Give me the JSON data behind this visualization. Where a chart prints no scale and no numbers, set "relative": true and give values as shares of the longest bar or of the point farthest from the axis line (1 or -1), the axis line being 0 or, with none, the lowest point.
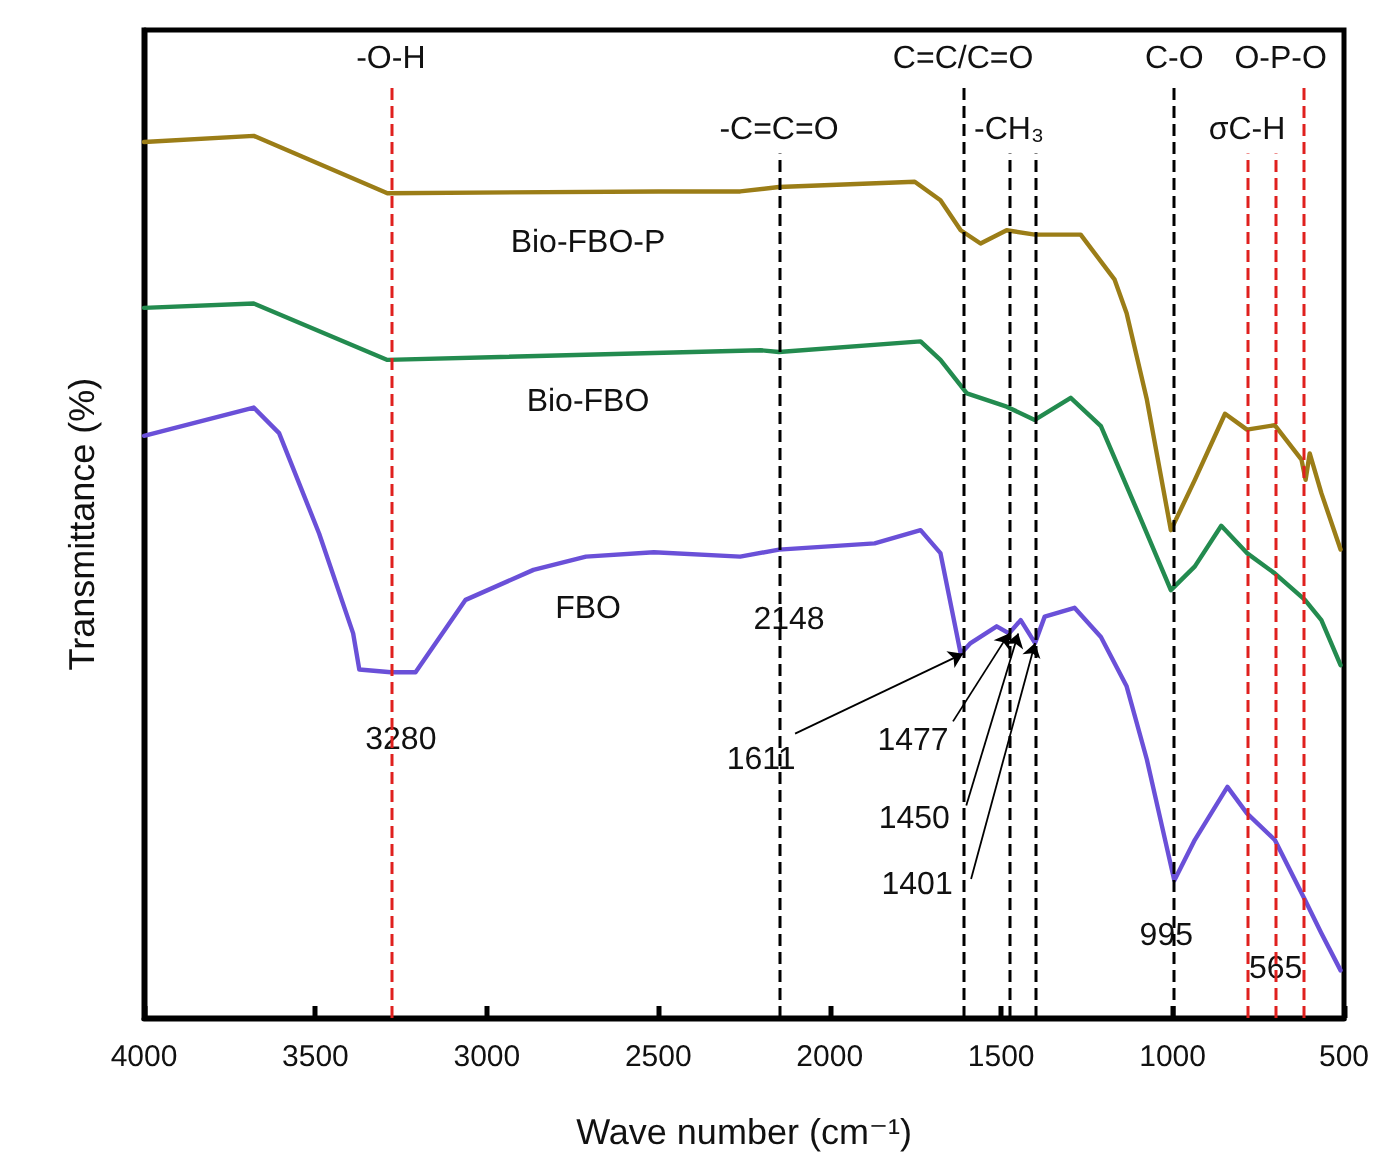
{
  "chart_data": {
    "type": "line",
    "xlabel": "Wave number (cm⁻¹)",
    "ylabel": "Transmittance (%)",
    "relative": true,
    "xlim": [
      4000,
      500
    ],
    "xticks": [
      4000,
      3500,
      3000,
      2500,
      2000,
      1500,
      1000,
      500
    ],
    "grid": false,
    "legend": false,
    "marker": "none",
    "line_style": "solid",
    "series": [
      {
        "name": "Bio-FBO-P",
        "color": "#9b7d17",
        "x": [
          4000,
          3680,
          3290,
          2500,
          2261,
          2148,
          1752,
          1677,
          1618,
          1560,
          1484,
          1402,
          1268,
          1169,
          1134,
          1075,
          1005,
          935,
          847,
          783,
          702,
          624,
          612,
          600,
          566,
          510
        ],
        "values": [
          0.993,
          1,
          0.935,
          0.937,
          0.937,
          0.942,
          0.948,
          0.927,
          0.893,
          0.878,
          0.893,
          0.888,
          0.888,
          0.837,
          0.799,
          0.701,
          0.553,
          0.61,
          0.685,
          0.667,
          0.672,
          0.633,
          0.61,
          0.64,
          0.595,
          0.531
        ]
      },
      {
        "name": "Bio-FBO",
        "color": "#238b4f",
        "x": [
          4000,
          3680,
          3290,
          2202,
          2148,
          1735,
          1677,
          1600,
          1484,
          1402,
          1297,
          1209,
          1092,
          1005,
          935,
          858,
          783,
          702,
          614,
          566,
          510
        ],
        "values": [
          0.805,
          0.81,
          0.746,
          0.757,
          0.755,
          0.767,
          0.746,
          0.708,
          0.693,
          0.678,
          0.703,
          0.671,
          0.565,
          0.485,
          0.512,
          0.558,
          0.527,
          0.504,
          0.474,
          0.451,
          0.4
        ]
      },
      {
        "name": "FBO",
        "color": "#6a50d8",
        "x": [
          4000,
          3680,
          3606,
          3489,
          3390,
          3372,
          3280,
          3208,
          3062,
          2864,
          2711,
          2513,
          2261,
          2148,
          1869,
          1735,
          1677,
          1618,
          1589,
          1513,
          1477,
          1443,
          1401,
          1373,
          1286,
          1209,
          1134,
          1075,
          995,
          935,
          840,
          783,
          702,
          614,
          566,
          510
        ],
        "values": [
          0.66,
          0.692,
          0.663,
          0.549,
          0.436,
          0.395,
          0.392,
          0.392,
          0.474,
          0.508,
          0.523,
          0.528,
          0.523,
          0.531,
          0.538,
          0.553,
          0.527,
          0.413,
          0.425,
          0.444,
          0.436,
          0.451,
          0.425,
          0.455,
          0.465,
          0.432,
          0.376,
          0.293,
          0.156,
          0.202,
          0.262,
          0.232,
          0.202,
          0.134,
          0.096,
          0.054
        ]
      }
    ],
    "ref_lines": [
      {
        "axis": "x",
        "value": 3280,
        "label": "-O-H",
        "color": "#e0201e",
        "line_style": "dashed"
      },
      {
        "axis": "x",
        "value": 2148,
        "label": "-C=C=O",
        "color": "#000000",
        "line_style": "dashed"
      },
      {
        "axis": "x",
        "value": 1611,
        "label": "C=C/C=O",
        "color": "#000000",
        "line_style": "dashed"
      },
      {
        "axis": "x",
        "value": 1477,
        "label": "-CH₃",
        "color": "#000000",
        "line_style": "dashed"
      },
      {
        "axis": "x",
        "value": 1401,
        "label": null,
        "color": "#000000",
        "line_style": "dashed"
      },
      {
        "axis": "x",
        "value": 995,
        "label": "C-O",
        "color": "#000000",
        "line_style": "dashed"
      },
      {
        "axis": "x",
        "value": 783,
        "label": "σC-H",
        "color": "#e0201e",
        "line_style": "dashed"
      },
      {
        "axis": "x",
        "value": 702,
        "label": null,
        "color": "#e0201e",
        "line_style": "dashed"
      },
      {
        "axis": "x",
        "value": 620,
        "label": "O-P-O",
        "color": "#e0201e",
        "line_style": "dashed"
      }
    ],
    "annotations": [
      {
        "text": "3280",
        "x": 3280,
        "y": 0.392
      },
      {
        "text": "2148",
        "x": 2148,
        "y": 0.531
      },
      {
        "text": "1611",
        "x": 1611,
        "y": 0.413
      },
      {
        "text": "1477",
        "x": 1477,
        "y": 0.436
      },
      {
        "text": "1450",
        "x": 1450,
        "y": 0.436
      },
      {
        "text": "1401",
        "x": 1401,
        "y": 0.425
      },
      {
        "text": "995",
        "x": 995,
        "y": 0.156
      },
      {
        "text": "565",
        "x": 565,
        "y": 0.096
      }
    ]
  }
}
